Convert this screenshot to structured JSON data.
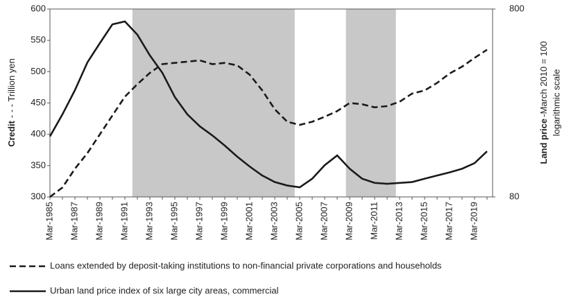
{
  "chart_data": {
    "type": "line",
    "ylabel_bold": "Credit",
    "ylabel": "- - - Trillion yen",
    "y2label_bold": "Land price",
    "y2label": "-March 2010 = 100",
    "y2label_line2": "logarithmic scale",
    "categories": [
      "Mar-1985",
      null,
      "Mar-1987",
      null,
      "Mar-1989",
      null,
      "Mar-1991",
      null,
      "Mar-1993",
      null,
      "Mar-1995",
      null,
      "Mar-1997",
      null,
      "Mar-1999",
      null,
      "Mar-2001",
      null,
      "Mar-2003",
      null,
      "Mar-2005",
      null,
      "Mar-2007",
      null,
      "Mar-2009",
      null,
      "Mar-2011",
      null,
      "Mar-2013",
      null,
      "Mar-2015",
      null,
      "Mar-2017",
      null,
      "Mar-2019",
      null
    ],
    "shaded": [
      [
        6.6,
        19.6
      ],
      [
        23.7,
        27.7
      ]
    ],
    "ylim": [
      300,
      600
    ],
    "yticks": [
      300,
      350,
      400,
      450,
      500,
      550,
      600
    ],
    "y2lim": [
      80,
      800
    ],
    "y2ticks": [
      80,
      800
    ],
    "y2log": true,
    "series": [
      {
        "name": "Loans extended by deposit-taking institutions to non-financial private corporations and households",
        "color": "#1a1a1a",
        "dash": true,
        "values": [
          300,
          315,
          345,
          370,
          400,
          430,
          460,
          480,
          498,
          512,
          514,
          516,
          518,
          512,
          514,
          510,
          495,
          470,
          440,
          420,
          415,
          420,
          428,
          437,
          450,
          448,
          443,
          445,
          452,
          465,
          470,
          482,
          497,
          508,
          522,
          535
        ]
      },
      {
        "name": "Urban land price index of six large city areas, commercial",
        "color": "#1a1a1a",
        "dash": false,
        "axis": "y2",
        "values": [
          168,
          220,
          296,
          416,
          527,
          663,
          687,
          584,
          453,
          366,
          272,
          220,
          190,
          170,
          150,
          131,
          116,
          104,
          96,
          92,
          90,
          100,
          118,
          133,
          113,
          100,
          95,
          94,
          95,
          96,
          100,
          104,
          108,
          113,
          121,
          140
        ]
      }
    ]
  }
}
